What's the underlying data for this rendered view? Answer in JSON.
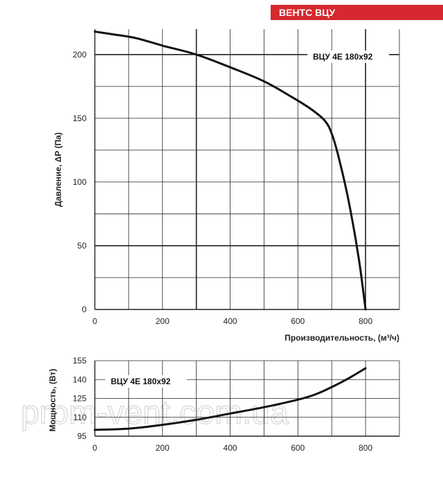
{
  "brand": {
    "label": "ВЕНТС ВЦУ",
    "color": "#d7282f"
  },
  "watermark": "prom-vent.com.ua",
  "colors": {
    "curve": "#111111",
    "grid": "#222222",
    "background": "#ffffff"
  },
  "chart_data": [
    {
      "type": "line",
      "title": "",
      "xlabel": "Производительность, (м³/ч)",
      "ylabel": "Давление, ΔР (Па)",
      "xlim": [
        0,
        900
      ],
      "ylim": [
        0,
        220
      ],
      "x_ticks": [
        0,
        200,
        400,
        600,
        800
      ],
      "y_ticks": [
        0,
        50,
        100,
        150,
        200
      ],
      "grid": true,
      "legend_position": "top-right",
      "series": [
        {
          "name": "ВЦУ 4Е 180x92",
          "x": [
            0,
            50,
            120,
            200,
            300,
            400,
            500,
            580,
            640,
            680,
            700,
            720,
            750,
            780,
            800
          ],
          "y": [
            218,
            216,
            213,
            207,
            200,
            190,
            179,
            167,
            157,
            148,
            138,
            120,
            85,
            40,
            0
          ]
        }
      ]
    },
    {
      "type": "line",
      "title": "",
      "xlabel": "",
      "ylabel": "Мощность, (Вт)",
      "xlim": [
        0,
        900
      ],
      "ylim": [
        95,
        155
      ],
      "x_ticks": [
        0,
        200,
        400,
        600,
        800
      ],
      "y_ticks": [
        95,
        110,
        125,
        140,
        155
      ],
      "grid": true,
      "legend_position": "top-left",
      "series": [
        {
          "name": "ВЦУ 4Е 180x92",
          "x": [
            0,
            100,
            200,
            300,
            400,
            500,
            600,
            650,
            700,
            750,
            800
          ],
          "y": [
            100,
            101,
            104,
            108,
            113,
            118,
            124,
            128,
            134,
            141,
            149
          ]
        }
      ]
    }
  ]
}
